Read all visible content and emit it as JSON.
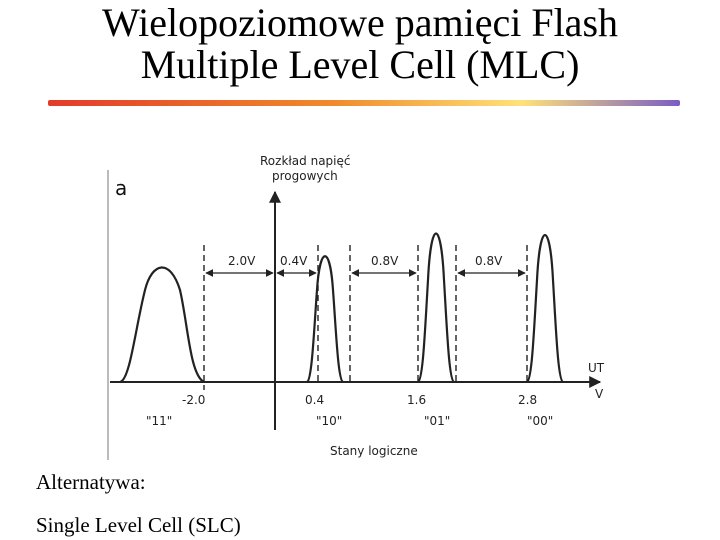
{
  "title": {
    "line1": "Wielopoziomowe pamięci Flash",
    "line2": "Multiple Level Cell (MLC)"
  },
  "figure": {
    "panel_letter": "a",
    "y_axis_label_line1": "Rozkład napięć",
    "y_axis_label_line2": "progowych",
    "x_axis_unit_top": "UT",
    "x_axis_unit_bottom": "V",
    "x_axis_title": "Stany logiczne",
    "ticks": [
      "-2.0",
      "0.4",
      "1.6",
      "2.8"
    ],
    "states": [
      "\"11\"",
      "\"10\"",
      "\"01\"",
      "\"00\""
    ],
    "gaps": [
      "2.0V",
      "0.4V",
      "0.8V",
      "0.8V"
    ]
  },
  "captions": {
    "alternative": "Alternatywa:",
    "slc": "Single Level Cell (SLC)"
  }
}
